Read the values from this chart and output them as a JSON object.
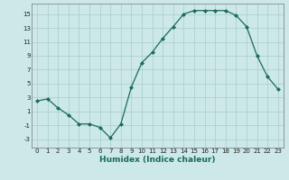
{
  "x": [
    0,
    1,
    2,
    3,
    4,
    5,
    6,
    7,
    8,
    9,
    10,
    11,
    12,
    13,
    14,
    15,
    16,
    17,
    18,
    19,
    20,
    21,
    22,
    23
  ],
  "y": [
    2.5,
    2.8,
    1.5,
    0.5,
    -0.8,
    -0.8,
    -1.3,
    -2.8,
    -0.8,
    4.5,
    8.0,
    9.5,
    11.5,
    13.2,
    15.0,
    15.5,
    15.5,
    15.5,
    15.5,
    14.8,
    13.2,
    9.0,
    6.0,
    4.2
  ],
  "xlabel": "Humidex (Indice chaleur)",
  "xlim": [
    -0.5,
    23.5
  ],
  "ylim": [
    -4.2,
    16.5
  ],
  "yticks": [
    -3,
    -1,
    1,
    3,
    5,
    7,
    9,
    11,
    13,
    15
  ],
  "xticks": [
    0,
    1,
    2,
    3,
    4,
    5,
    6,
    7,
    8,
    9,
    10,
    11,
    12,
    13,
    14,
    15,
    16,
    17,
    18,
    19,
    20,
    21,
    22,
    23
  ],
  "line_color": "#1a6b5a",
  "marker": "D",
  "markersize": 2.0,
  "linewidth": 0.9,
  "bg_color": "#cce8e8",
  "grid_color": "#aacccc",
  "xlabel_fontsize": 6.5,
  "tick_fontsize": 5.0
}
